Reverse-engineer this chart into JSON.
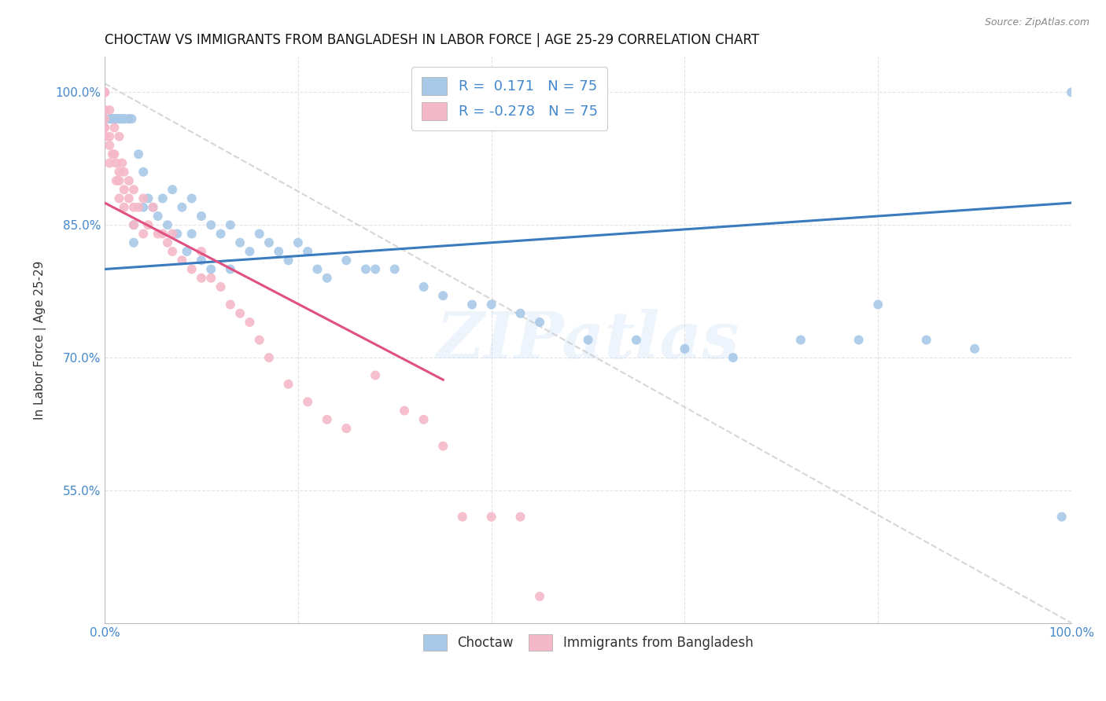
{
  "title": "CHOCTAW VS IMMIGRANTS FROM BANGLADESH IN LABOR FORCE | AGE 25-29 CORRELATION CHART",
  "source": "Source: ZipAtlas.com",
  "ylabel": "In Labor Force | Age 25-29",
  "xmin": 0.0,
  "xmax": 1.0,
  "ymin": 0.4,
  "ymax": 1.04,
  "yticks": [
    0.55,
    0.7,
    0.85,
    1.0
  ],
  "ytick_labels": [
    "55.0%",
    "70.0%",
    "85.0%",
    "100.0%"
  ],
  "xticks": [
    0.0,
    0.2,
    0.4,
    0.6,
    0.8,
    1.0
  ],
  "xtick_labels_show": [
    "0.0%",
    "100.0%"
  ],
  "choctaw_color": "#a8c8e8",
  "bangladesh_color": "#f4b8c8",
  "trend_choctaw_color": "#3a7abf",
  "trend_bangladesh_color": "#e05080",
  "diagonal_color": "#cccccc",
  "watermark": "ZIPatlas",
  "choctaw_label": "Choctaw",
  "bangladesh_label": "Immigrants from Bangladesh",
  "R_choctaw": "0.171",
  "R_bangladesh": "-0.278",
  "N": "75",
  "title_fontsize": 12,
  "tick_fontsize": 11,
  "legend_fontsize": 13,
  "choctaw_x": [
    0.0,
    0.0,
    0.0,
    0.0,
    0.005,
    0.005,
    0.008,
    0.008,
    0.01,
    0.01,
    0.01,
    0.012,
    0.015,
    0.015,
    0.016,
    0.018,
    0.02,
    0.02,
    0.025,
    0.025,
    0.028,
    0.03,
    0.03,
    0.035,
    0.04,
    0.04,
    0.045,
    0.05,
    0.055,
    0.06,
    0.065,
    0.07,
    0.075,
    0.08,
    0.085,
    0.09,
    0.09,
    0.1,
    0.1,
    0.11,
    0.11,
    0.12,
    0.13,
    0.13,
    0.14,
    0.15,
    0.16,
    0.17,
    0.18,
    0.19,
    0.2,
    0.21,
    0.22,
    0.23,
    0.25,
    0.27,
    0.28,
    0.3,
    0.33,
    0.35,
    0.38,
    0.4,
    0.43,
    0.45,
    0.5,
    0.55,
    0.6,
    0.65,
    0.72,
    0.78,
    0.8,
    0.85,
    0.9,
    0.99,
    1.0
  ],
  "choctaw_y": [
    0.97,
    0.97,
    0.97,
    0.97,
    0.97,
    0.97,
    0.97,
    0.97,
    0.97,
    0.97,
    0.97,
    0.97,
    0.97,
    0.97,
    0.97,
    0.97,
    0.97,
    0.97,
    0.97,
    0.97,
    0.97,
    0.85,
    0.83,
    0.93,
    0.91,
    0.87,
    0.88,
    0.87,
    0.86,
    0.88,
    0.85,
    0.89,
    0.84,
    0.87,
    0.82,
    0.88,
    0.84,
    0.86,
    0.81,
    0.85,
    0.8,
    0.84,
    0.85,
    0.8,
    0.83,
    0.82,
    0.84,
    0.83,
    0.82,
    0.81,
    0.83,
    0.82,
    0.8,
    0.79,
    0.81,
    0.8,
    0.8,
    0.8,
    0.78,
    0.77,
    0.76,
    0.76,
    0.75,
    0.74,
    0.72,
    0.72,
    0.71,
    0.7,
    0.72,
    0.72,
    0.76,
    0.72,
    0.71,
    0.52,
    1.0
  ],
  "bangladesh_x": [
    0.0,
    0.0,
    0.0,
    0.0,
    0.0,
    0.0,
    0.0,
    0.0,
    0.0,
    0.0,
    0.005,
    0.005,
    0.005,
    0.005,
    0.008,
    0.01,
    0.01,
    0.012,
    0.012,
    0.015,
    0.015,
    0.015,
    0.015,
    0.018,
    0.02,
    0.02,
    0.02,
    0.025,
    0.025,
    0.03,
    0.03,
    0.03,
    0.035,
    0.04,
    0.04,
    0.045,
    0.05,
    0.055,
    0.06,
    0.065,
    0.07,
    0.07,
    0.08,
    0.09,
    0.1,
    0.1,
    0.11,
    0.12,
    0.13,
    0.14,
    0.15,
    0.16,
    0.17,
    0.19,
    0.21,
    0.23,
    0.25,
    0.28,
    0.31,
    0.33,
    0.35,
    0.37,
    0.4,
    0.43,
    0.45
  ],
  "bangladesh_y": [
    1.0,
    1.0,
    1.0,
    1.0,
    1.0,
    0.98,
    0.97,
    0.96,
    0.96,
    0.95,
    0.98,
    0.95,
    0.94,
    0.92,
    0.93,
    0.96,
    0.93,
    0.92,
    0.9,
    0.95,
    0.91,
    0.9,
    0.88,
    0.92,
    0.91,
    0.89,
    0.87,
    0.9,
    0.88,
    0.89,
    0.87,
    0.85,
    0.87,
    0.88,
    0.84,
    0.85,
    0.87,
    0.84,
    0.84,
    0.83,
    0.84,
    0.82,
    0.81,
    0.8,
    0.82,
    0.79,
    0.79,
    0.78,
    0.76,
    0.75,
    0.74,
    0.72,
    0.7,
    0.67,
    0.65,
    0.63,
    0.62,
    0.68,
    0.64,
    0.63,
    0.6,
    0.52,
    0.52,
    0.52,
    0.43
  ]
}
